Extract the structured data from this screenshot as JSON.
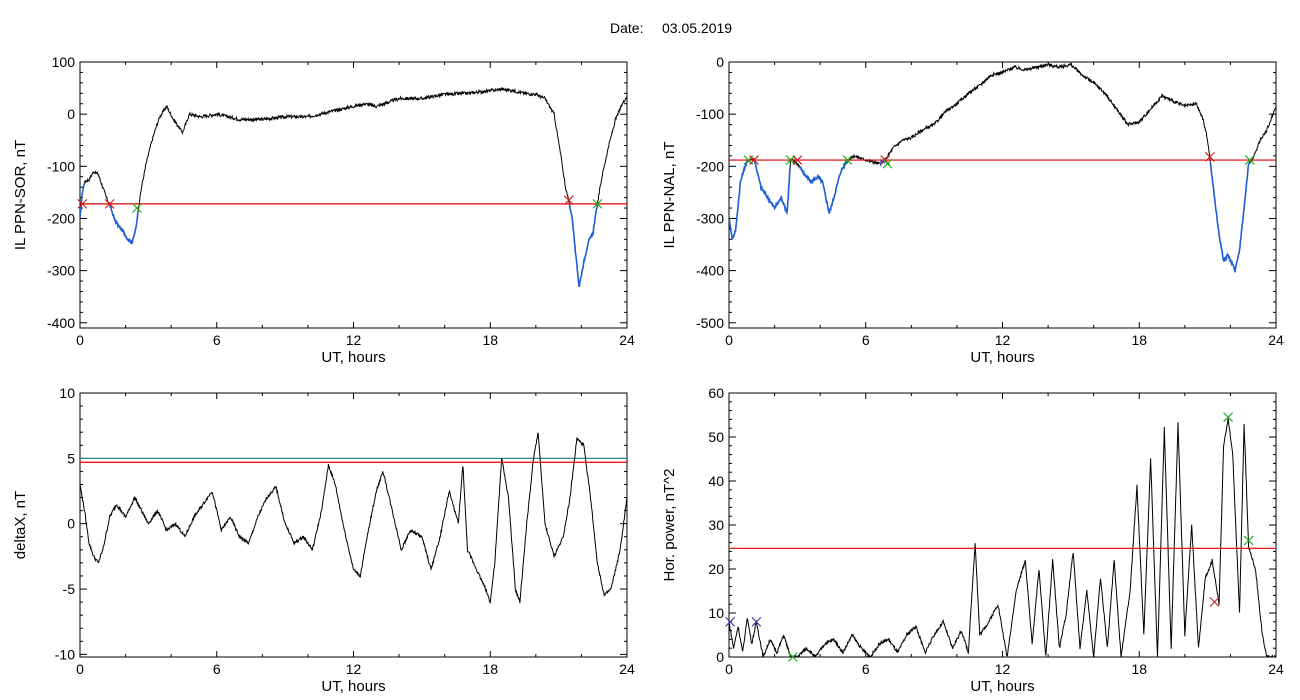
{
  "header": {
    "date_label": "Date:",
    "date_value": "03.05.2019"
  },
  "colors": {
    "trace": "#000000",
    "highlight": "#1f5fd8",
    "threshold": "#e00000",
    "threshold2": "#2e8b8b",
    "onset_marker": "#d02020",
    "end_marker": "#20b020",
    "extra_marker": "#5a3ea8"
  },
  "chart_data": [
    {
      "type": "line",
      "ylabel": "IL PPN-SOR, nT",
      "xlabel": "UT, hours",
      "xlim": [
        0,
        24
      ],
      "ylim": [
        -410,
        100
      ],
      "xticks": [
        "0",
        "6",
        "12",
        "18",
        "24"
      ],
      "yticks": [
        "100",
        "0",
        "-100",
        "-200",
        "-300",
        "-400"
      ],
      "threshold": -172,
      "series_points": [
        [
          0,
          -200
        ],
        [
          0.1,
          -150
        ],
        [
          0.2,
          -130
        ],
        [
          0.4,
          -125
        ],
        [
          0.6,
          -110
        ],
        [
          0.8,
          -115
        ],
        [
          1.0,
          -140
        ],
        [
          1.2,
          -165
        ],
        [
          1.3,
          -172
        ],
        [
          1.5,
          -200
        ],
        [
          1.7,
          -215
        ],
        [
          1.9,
          -225
        ],
        [
          2.1,
          -240
        ],
        [
          2.3,
          -245
        ],
        [
          2.45,
          -220
        ],
        [
          2.55,
          -185
        ],
        [
          2.7,
          -140
        ],
        [
          2.9,
          -95
        ],
        [
          3.1,
          -60
        ],
        [
          3.3,
          -30
        ],
        [
          3.5,
          -5
        ],
        [
          3.8,
          15
        ],
        [
          4.1,
          -10
        ],
        [
          4.5,
          -35
        ],
        [
          4.8,
          0
        ],
        [
          5.3,
          -5
        ],
        [
          6.0,
          0
        ],
        [
          7.0,
          -10
        ],
        [
          8.0,
          -10
        ],
        [
          9.0,
          -5
        ],
        [
          10.0,
          -5
        ],
        [
          11.0,
          5
        ],
        [
          12.0,
          15
        ],
        [
          12.5,
          20
        ],
        [
          13.0,
          15
        ],
        [
          14.0,
          30
        ],
        [
          15.0,
          30
        ],
        [
          16.0,
          38
        ],
        [
          17.0,
          40
        ],
        [
          18.0,
          45
        ],
        [
          18.5,
          48
        ],
        [
          19.0,
          45
        ],
        [
          19.5,
          40
        ],
        [
          20.0,
          38
        ],
        [
          20.4,
          30
        ],
        [
          20.8,
          0
        ],
        [
          21.1,
          -80
        ],
        [
          21.3,
          -140
        ],
        [
          21.45,
          -168
        ],
        [
          21.6,
          -200
        ],
        [
          21.75,
          -270
        ],
        [
          21.9,
          -330
        ],
        [
          22.1,
          -285
        ],
        [
          22.3,
          -245
        ],
        [
          22.5,
          -230
        ],
        [
          22.7,
          -172
        ],
        [
          22.9,
          -120
        ],
        [
          23.2,
          -60
        ],
        [
          23.5,
          -10
        ],
        [
          23.8,
          20
        ],
        [
          24.0,
          35
        ]
      ],
      "highlight_intervals": [
        [
          0,
          0.2
        ],
        [
          1.3,
          2.55
        ],
        [
          21.45,
          22.7
        ]
      ],
      "markers": [
        {
          "x": 0.1,
          "y": -172,
          "kind": "onset"
        },
        {
          "x": 1.3,
          "y": -172,
          "kind": "onset"
        },
        {
          "x": 2.5,
          "y": -180,
          "kind": "end"
        },
        {
          "x": 21.45,
          "y": -165,
          "kind": "onset"
        },
        {
          "x": 22.7,
          "y": -172,
          "kind": "end"
        }
      ]
    },
    {
      "type": "line",
      "ylabel": "IL PPN-NAL, nT",
      "xlabel": "UT, hours",
      "xlim": [
        0,
        24
      ],
      "ylim": [
        -510,
        0
      ],
      "xticks": [
        "0",
        "6",
        "12",
        "18",
        "24"
      ],
      "yticks": [
        "0",
        "-100",
        "-200",
        "-300",
        "-400",
        "-500"
      ],
      "threshold": -188,
      "series_points": [
        [
          0,
          -300
        ],
        [
          0.15,
          -340
        ],
        [
          0.3,
          -320
        ],
        [
          0.5,
          -230
        ],
        [
          0.7,
          -200
        ],
        [
          0.85,
          -188
        ],
        [
          1.1,
          -185
        ],
        [
          1.4,
          -240
        ],
        [
          1.7,
          -260
        ],
        [
          2.0,
          -280
        ],
        [
          2.3,
          -260
        ],
        [
          2.55,
          -290
        ],
        [
          2.7,
          -188
        ],
        [
          2.9,
          -190
        ],
        [
          3.1,
          -200
        ],
        [
          3.3,
          -215
        ],
        [
          3.6,
          -230
        ],
        [
          3.9,
          -220
        ],
        [
          4.1,
          -230
        ],
        [
          4.4,
          -290
        ],
        [
          4.6,
          -260
        ],
        [
          4.9,
          -210
        ],
        [
          5.2,
          -188
        ],
        [
          5.5,
          -180
        ],
        [
          5.8,
          -185
        ],
        [
          6.2,
          -190
        ],
        [
          6.6,
          -195
        ],
        [
          6.85,
          -188
        ],
        [
          7.2,
          -165
        ],
        [
          7.6,
          -150
        ],
        [
          8.0,
          -145
        ],
        [
          8.5,
          -130
        ],
        [
          9.0,
          -120
        ],
        [
          9.5,
          -95
        ],
        [
          10.0,
          -80
        ],
        [
          10.5,
          -60
        ],
        [
          11.0,
          -45
        ],
        [
          11.5,
          -25
        ],
        [
          12.0,
          -20
        ],
        [
          12.5,
          -10
        ],
        [
          13.0,
          -15
        ],
        [
          13.5,
          -10
        ],
        [
          14.0,
          -5
        ],
        [
          14.5,
          -10
        ],
        [
          15.0,
          -5
        ],
        [
          15.5,
          -25
        ],
        [
          16.0,
          -40
        ],
        [
          16.5,
          -60
        ],
        [
          17.0,
          -90
        ],
        [
          17.5,
          -120
        ],
        [
          18.0,
          -115
        ],
        [
          18.5,
          -90
        ],
        [
          19.0,
          -65
        ],
        [
          19.5,
          -75
        ],
        [
          20.0,
          -85
        ],
        [
          20.5,
          -80
        ],
        [
          20.8,
          -110
        ],
        [
          21.0,
          -150
        ],
        [
          21.1,
          -185
        ],
        [
          21.3,
          -260
        ],
        [
          21.5,
          -330
        ],
        [
          21.7,
          -380
        ],
        [
          21.9,
          -370
        ],
        [
          22.2,
          -400
        ],
        [
          22.4,
          -360
        ],
        [
          22.6,
          -280
        ],
        [
          22.8,
          -195
        ],
        [
          23.0,
          -185
        ],
        [
          23.3,
          -150
        ],
        [
          23.6,
          -130
        ],
        [
          24.0,
          -85
        ]
      ],
      "highlight_intervals": [
        [
          0,
          0.85
        ],
        [
          1.1,
          2.7
        ],
        [
          3.1,
          5.2
        ],
        [
          6.6,
          6.85
        ],
        [
          21.1,
          22.85
        ]
      ],
      "markers": [
        {
          "x": 0.85,
          "y": -188,
          "kind": "end"
        },
        {
          "x": 1.1,
          "y": -188,
          "kind": "onset"
        },
        {
          "x": 2.7,
          "y": -188,
          "kind": "end"
        },
        {
          "x": 3.0,
          "y": -188,
          "kind": "onset"
        },
        {
          "x": 5.2,
          "y": -188,
          "kind": "end"
        },
        {
          "x": 6.85,
          "y": -188,
          "kind": "onset"
        },
        {
          "x": 6.95,
          "y": -195,
          "kind": "end"
        },
        {
          "x": 21.1,
          "y": -182,
          "kind": "onset"
        },
        {
          "x": 22.85,
          "y": -188,
          "kind": "end"
        }
      ]
    },
    {
      "type": "line",
      "ylabel": "deltaX, nT",
      "xlabel": "UT, hours",
      "xlim": [
        0,
        24
      ],
      "ylim": [
        -10.2,
        10
      ],
      "xticks": [
        "0",
        "6",
        "12",
        "18",
        "24"
      ],
      "yticks": [
        "10",
        "5",
        "0",
        "-5",
        "-10"
      ],
      "threshold": 4.7,
      "threshold2": 5.0,
      "series_points": [
        [
          0,
          3.0
        ],
        [
          0.2,
          1.0
        ],
        [
          0.4,
          -1.5
        ],
        [
          0.6,
          -2.5
        ],
        [
          0.8,
          -3.0
        ],
        [
          1.0,
          -2.0
        ],
        [
          1.3,
          0.5
        ],
        [
          1.6,
          1.5
        ],
        [
          2.0,
          0.5
        ],
        [
          2.4,
          2.0
        ],
        [
          2.7,
          1.0
        ],
        [
          3.0,
          0.0
        ],
        [
          3.4,
          1.0
        ],
        [
          3.8,
          -0.5
        ],
        [
          4.2,
          0.0
        ],
        [
          4.6,
          -1.0
        ],
        [
          5.0,
          0.5
        ],
        [
          5.4,
          1.5
        ],
        [
          5.8,
          2.5
        ],
        [
          6.2,
          -0.5
        ],
        [
          6.6,
          0.5
        ],
        [
          7.0,
          -1.0
        ],
        [
          7.4,
          -1.5
        ],
        [
          7.8,
          0.5
        ],
        [
          8.2,
          2.0
        ],
        [
          8.6,
          2.8
        ],
        [
          9.0,
          0.0
        ],
        [
          9.4,
          -1.5
        ],
        [
          9.8,
          -1.0
        ],
        [
          10.2,
          -2.0
        ],
        [
          10.6,
          1.0
        ],
        [
          10.9,
          4.5
        ],
        [
          11.2,
          3.0
        ],
        [
          11.6,
          -0.5
        ],
        [
          12.0,
          -3.5
        ],
        [
          12.3,
          -4.0
        ],
        [
          12.6,
          -1.0
        ],
        [
          13.0,
          2.5
        ],
        [
          13.3,
          4.0
        ],
        [
          13.7,
          1.0
        ],
        [
          14.1,
          -2.0
        ],
        [
          14.5,
          -0.5
        ],
        [
          15.0,
          -1.0
        ],
        [
          15.4,
          -3.5
        ],
        [
          15.8,
          -1.0
        ],
        [
          16.2,
          2.5
        ],
        [
          16.6,
          0.0
        ],
        [
          16.8,
          4.5
        ],
        [
          17.0,
          -2.0
        ],
        [
          17.4,
          -3.5
        ],
        [
          17.8,
          -5.0
        ],
        [
          18.0,
          -6.0
        ],
        [
          18.2,
          -3.0
        ],
        [
          18.5,
          5.0
        ],
        [
          18.8,
          2.0
        ],
        [
          19.1,
          -5.0
        ],
        [
          19.3,
          -6.0
        ],
        [
          19.6,
          0.0
        ],
        [
          19.9,
          5.0
        ],
        [
          20.1,
          7.0
        ],
        [
          20.4,
          0.0
        ],
        [
          20.8,
          -2.5
        ],
        [
          21.2,
          -1.0
        ],
        [
          21.5,
          2.0
        ],
        [
          21.8,
          6.5
        ],
        [
          22.1,
          6.0
        ],
        [
          22.4,
          2.0
        ],
        [
          22.7,
          -3.0
        ],
        [
          23.0,
          -5.5
        ],
        [
          23.3,
          -5.0
        ],
        [
          23.7,
          -2.0
        ],
        [
          24.0,
          2.0
        ]
      ]
    },
    {
      "type": "line",
      "ylabel": "Hor. power, nT^2",
      "xlabel": "UT, hours",
      "xlim": [
        0,
        24
      ],
      "ylim": [
        0,
        60
      ],
      "xticks": [
        "0",
        "6",
        "12",
        "18",
        "24"
      ],
      "yticks": [
        "60",
        "50",
        "40",
        "30",
        "20",
        "10",
        "0"
      ],
      "threshold": 24.7,
      "series_points": [
        [
          0,
          8
        ],
        [
          0.2,
          2
        ],
        [
          0.4,
          7
        ],
        [
          0.6,
          1
        ],
        [
          0.8,
          9
        ],
        [
          1.0,
          3
        ],
        [
          1.2,
          8
        ],
        [
          1.5,
          0
        ],
        [
          1.8,
          4
        ],
        [
          2.1,
          1
        ],
        [
          2.4,
          5
        ],
        [
          2.7,
          0
        ],
        [
          3.0,
          0
        ],
        [
          3.4,
          2
        ],
        [
          3.8,
          0
        ],
        [
          4.2,
          3
        ],
        [
          4.6,
          4
        ],
        [
          5.0,
          1
        ],
        [
          5.4,
          5
        ],
        [
          5.8,
          2
        ],
        [
          6.2,
          0
        ],
        [
          6.6,
          3
        ],
        [
          7.0,
          4
        ],
        [
          7.4,
          1
        ],
        [
          7.8,
          5
        ],
        [
          8.2,
          7
        ],
        [
          8.6,
          1
        ],
        [
          9.0,
          5
        ],
        [
          9.4,
          8
        ],
        [
          9.8,
          2
        ],
        [
          10.2,
          6
        ],
        [
          10.5,
          1
        ],
        [
          10.8,
          26
        ],
        [
          11.0,
          5
        ],
        [
          11.4,
          8
        ],
        [
          11.8,
          12
        ],
        [
          12.2,
          0
        ],
        [
          12.6,
          15
        ],
        [
          13.0,
          22
        ],
        [
          13.3,
          3
        ],
        [
          13.6,
          20
        ],
        [
          13.9,
          0
        ],
        [
          14.2,
          22
        ],
        [
          14.5,
          2
        ],
        [
          14.8,
          10
        ],
        [
          15.1,
          24
        ],
        [
          15.4,
          2
        ],
        [
          15.7,
          15
        ],
        [
          16.0,
          0
        ],
        [
          16.3,
          18
        ],
        [
          16.6,
          2
        ],
        [
          16.9,
          22
        ],
        [
          17.2,
          0
        ],
        [
          17.6,
          15
        ],
        [
          17.9,
          39
        ],
        [
          18.2,
          5
        ],
        [
          18.5,
          45
        ],
        [
          18.8,
          0
        ],
        [
          19.1,
          52
        ],
        [
          19.4,
          2
        ],
        [
          19.7,
          53
        ],
        [
          20.0,
          5
        ],
        [
          20.3,
          30
        ],
        [
          20.6,
          2
        ],
        [
          20.9,
          18
        ],
        [
          21.2,
          22
        ],
        [
          21.5,
          12
        ],
        [
          21.7,
          48
        ],
        [
          21.9,
          54
        ],
        [
          22.1,
          46
        ],
        [
          22.4,
          10
        ],
        [
          22.6,
          53
        ],
        [
          22.8,
          25
        ],
        [
          23.1,
          20
        ],
        [
          23.4,
          5
        ],
        [
          23.6,
          0
        ],
        [
          24.0,
          0
        ]
      ],
      "markers": [
        {
          "x": 0.05,
          "y": 8,
          "kind": "extra"
        },
        {
          "x": 1.2,
          "y": 8,
          "kind": "extra"
        },
        {
          "x": 2.8,
          "y": 0,
          "kind": "end"
        },
        {
          "x": 21.3,
          "y": 12.5,
          "kind": "onset"
        },
        {
          "x": 21.9,
          "y": 54.5,
          "kind": "end"
        },
        {
          "x": 22.8,
          "y": 26.5,
          "kind": "end"
        }
      ]
    }
  ]
}
